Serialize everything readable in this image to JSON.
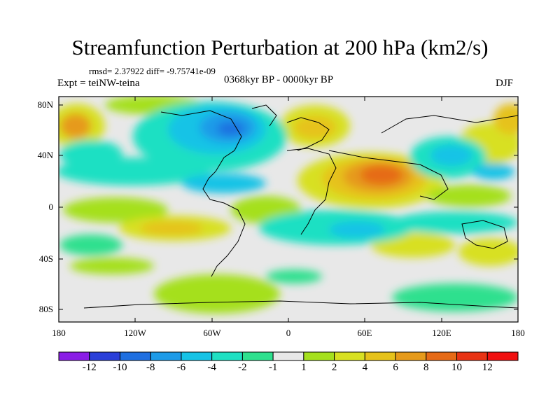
{
  "title": "Streamfunction Perturbation at 200 hPa (km2/s)",
  "stats": "rmsd= 2.37922 diff= -9.75741e-09",
  "experiment": "Expt = teiNW-teina",
  "period": "0368kyr BP - 0000kyr BP",
  "season": "DJF",
  "lat_labels": [
    "80N",
    "40N",
    "0",
    "40S",
    "80S"
  ],
  "lon_labels": [
    "180",
    "120W",
    "60W",
    "0",
    "60E",
    "120E",
    "180"
  ],
  "colorbar": {
    "labels": [
      "-12",
      "-10",
      "-8",
      "-6",
      "-4",
      "-2",
      "-1",
      "1",
      "2",
      "4",
      "6",
      "8",
      "10",
      "12"
    ],
    "colors": [
      "#8a1ee6",
      "#2a3fd9",
      "#1f6fe0",
      "#1e9be8",
      "#16c3e6",
      "#1fe0c3",
      "#2ee08e",
      "#e8e8e8",
      "#a5e01e",
      "#d8e022",
      "#e6c21a",
      "#e69a1a",
      "#e66a16",
      "#e83314",
      "#f01010"
    ]
  }
}
